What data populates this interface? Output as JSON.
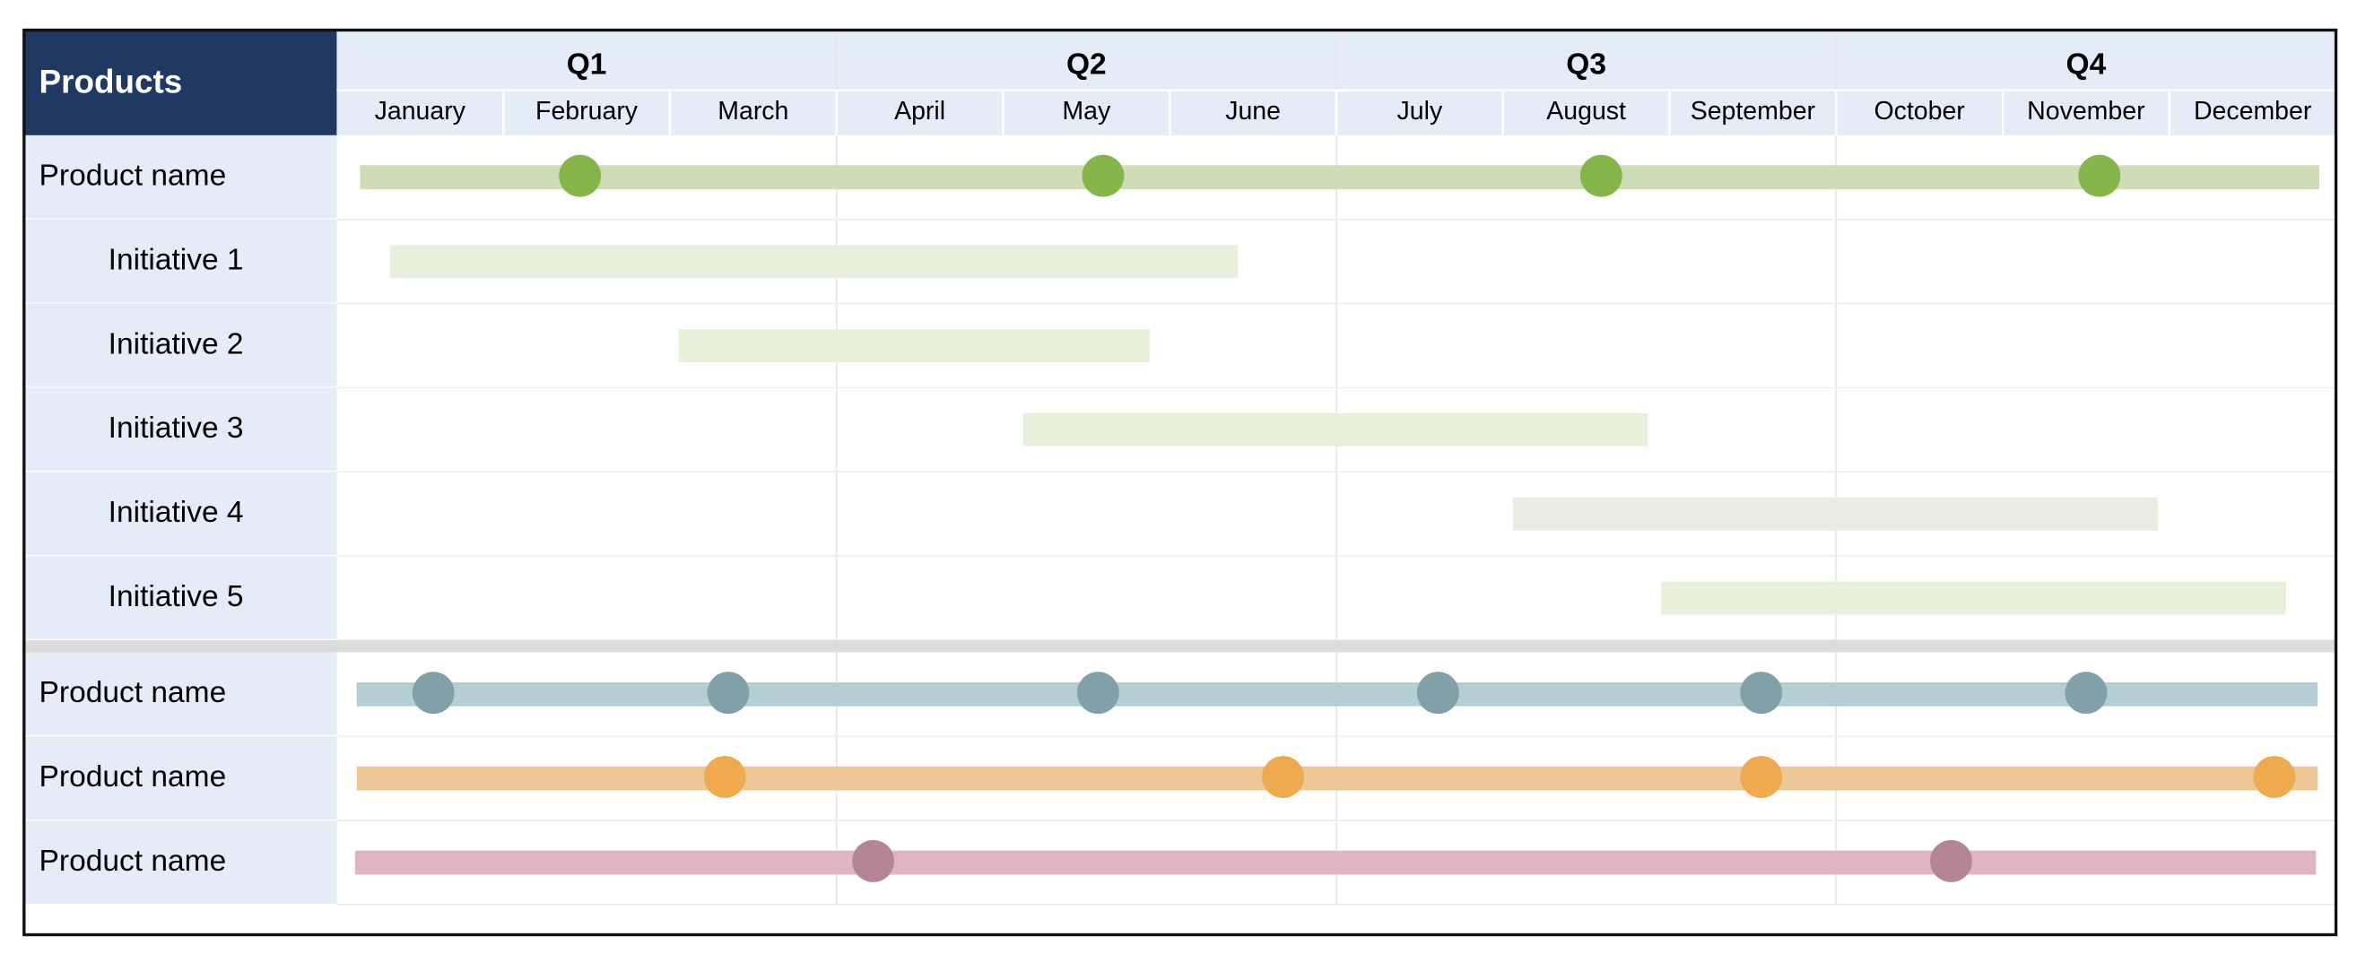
{
  "header": {
    "title": "Products"
  },
  "quarters": [
    "Q1",
    "Q2",
    "Q3",
    "Q4"
  ],
  "months": [
    "January",
    "February",
    "March",
    "April",
    "May",
    "June",
    "July",
    "August",
    "September",
    "October",
    "November",
    "December"
  ],
  "sections": [
    {
      "products": [
        {
          "name": "Product name",
          "bar_color": "#cfdcb8",
          "color": "#86b649",
          "start": 0.14,
          "end": 11.9,
          "milestones": [
            1.46,
            4.6,
            7.59,
            10.58
          ],
          "initiatives": [
            {
              "name": "Initiative 1",
              "color": "#e6f0da",
              "start": 0.32,
              "end": 5.41
            },
            {
              "name": "Initiative 2",
              "color": "#e6f0da",
              "start": 2.05,
              "end": 4.88
            },
            {
              "name": "Initiative 3",
              "color": "#e6f0da",
              "start": 4.12,
              "end": 7.87
            },
            {
              "name": "Initiative 4",
              "color": "#e8eddf",
              "start": 7.06,
              "end": 10.93
            },
            {
              "name": "Initiative 5",
              "color": "#e6f0da",
              "start": 7.95,
              "end": 11.7
            }
          ]
        }
      ]
    },
    {
      "products": [
        {
          "name": "Product name",
          "bar_color": "#b5ced6",
          "color": "#7fa1a7",
          "start": 0.12,
          "end": 11.89,
          "milestones": [
            0.58,
            2.35,
            4.57,
            6.61,
            8.55,
            10.5
          ]
        },
        {
          "name": "Product name",
          "bar_color": "#ebc895",
          "color": "#efa94e",
          "start": 0.12,
          "end": 11.89,
          "milestones": [
            2.33,
            5.68,
            8.55,
            11.63
          ]
        },
        {
          "name": "Product name",
          "bar_color": "#dfb5c4",
          "color": "#b48596",
          "start": 0.11,
          "end": 11.88,
          "milestones": [
            3.22,
            9.69
          ]
        }
      ]
    }
  ]
}
